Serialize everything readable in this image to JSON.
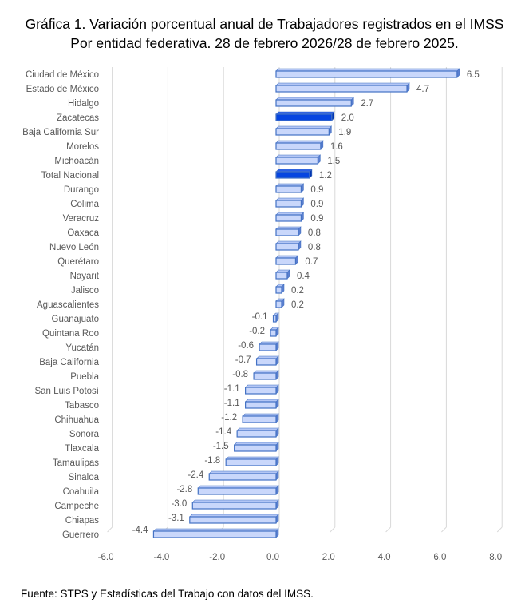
{
  "title_line1": "Gráfica 1. Variación porcentual anual de Trabajadores registrados en el IMSS",
  "title_line2": "Por entidad federativa. 28 de febrero 2026/28 de febrero 2025.",
  "source": "Fuente: STPS y Estadísticas del Trabajo con datos del IMSS.",
  "colors": {
    "bar_fill": "#C9D7FB",
    "bar_edge": "#4472C4",
    "highlight": "#0645E0",
    "grid": "#D9D9D9"
  },
  "chart_data": {
    "type": "bar",
    "orientation": "horizontal",
    "title": "Gráfica 1. Variación porcentual anual de Trabajadores registrados en el IMSS. Por entidad federativa. 28 de febrero 2026/28 de febrero 2025.",
    "categories": [
      "Ciudad de México",
      "Estado de México",
      "Hidalgo",
      "Zacatecas",
      "Baja California Sur",
      "Morelos",
      "Michoacán",
      "Total Nacional",
      "Durango",
      "Colima",
      "Veracruz",
      "Oaxaca",
      "Nuevo León",
      "Querétaro",
      "Nayarit",
      "Jalisco",
      "Aguascalientes",
      "Guanajuato",
      "Quintana Roo",
      "Yucatán",
      "Baja California",
      "Puebla",
      "San Luis Potosí",
      "Tabasco",
      "Chihuahua",
      "Sonora",
      "Tlaxcala",
      "Tamaulipas",
      "Sinaloa",
      "Coahuila",
      "Campeche",
      "Chiapas",
      "Guerrero"
    ],
    "values": [
      6.5,
      4.7,
      2.7,
      2.0,
      1.9,
      1.6,
      1.5,
      1.2,
      0.9,
      0.9,
      0.9,
      0.8,
      0.8,
      0.7,
      0.4,
      0.2,
      0.2,
      -0.1,
      -0.2,
      -0.6,
      -0.7,
      -0.8,
      -1.1,
      -1.1,
      -1.2,
      -1.4,
      -1.5,
      -1.8,
      -2.4,
      -2.8,
      -3.0,
      -3.1,
      -4.4
    ],
    "highlighted": [
      "Zacatecas",
      "Total Nacional"
    ],
    "xlim": [
      -6,
      8
    ],
    "xticks": [
      "-6.0",
      "-4.0",
      "-2.0",
      "0.0",
      "2.0",
      "4.0",
      "6.0",
      "8.0"
    ],
    "grid": true,
    "xlabel": "",
    "ylabel": ""
  }
}
